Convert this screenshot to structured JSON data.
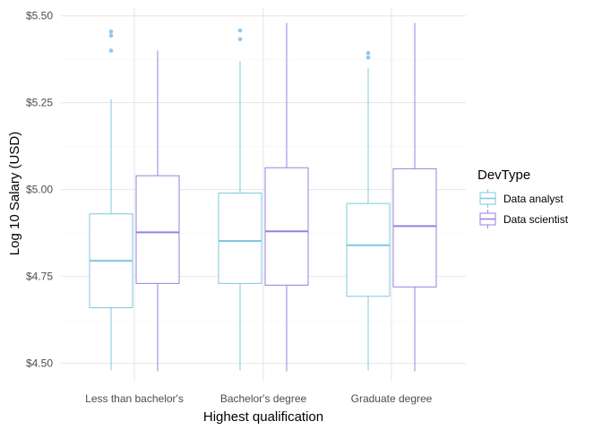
{
  "chart_data": {
    "type": "boxplot",
    "xlabel": "Highest qualification",
    "ylabel": "Log 10 Salary (USD)",
    "categories": [
      "Less than bachelor's",
      "Bachelor's degree",
      "Graduate degree"
    ],
    "ylim": [
      4.45,
      5.5
    ],
    "yticks": [
      4.5,
      4.75,
      5.0,
      5.25,
      5.5
    ],
    "ytick_labels": [
      "$4.50",
      "$4.75",
      "$5.00",
      "$5.25",
      "$5.50"
    ],
    "grid": true,
    "legend": {
      "title": "DevType",
      "position": "right",
      "entries": [
        "Data analyst",
        "Data scientist"
      ]
    },
    "series": [
      {
        "name": "Data analyst",
        "color": "#7fc8e0",
        "outlier_color": "#8ec9f0",
        "boxes": [
          {
            "whisker_low": 4.48,
            "q1": 4.66,
            "median": 4.795,
            "q3": 4.93,
            "whisker_high": 5.26,
            "outliers": [
              5.4,
              5.443,
              5.455
            ]
          },
          {
            "whisker_low": 4.48,
            "q1": 4.73,
            "median": 4.852,
            "q3": 4.99,
            "whisker_high": 5.37,
            "outliers": [
              5.433,
              5.458
            ]
          },
          {
            "whisker_low": 4.48,
            "q1": 4.693,
            "median": 4.84,
            "q3": 4.96,
            "whisker_high": 5.35,
            "outliers": [
              5.38,
              5.393
            ]
          }
        ]
      },
      {
        "name": "Data scientist",
        "color": "#9b7fe0",
        "outlier_color": "#9b7fe0",
        "boxes": [
          {
            "whisker_low": 4.477,
            "q1": 4.73,
            "median": 4.877,
            "q3": 5.04,
            "whisker_high": 5.4,
            "outliers": []
          },
          {
            "whisker_low": 4.477,
            "q1": 4.725,
            "median": 4.88,
            "q3": 5.063,
            "whisker_high": 5.48,
            "outliers": []
          },
          {
            "whisker_low": 4.477,
            "q1": 4.72,
            "median": 4.895,
            "q3": 5.06,
            "whisker_high": 5.48,
            "outliers": []
          }
        ]
      }
    ]
  }
}
